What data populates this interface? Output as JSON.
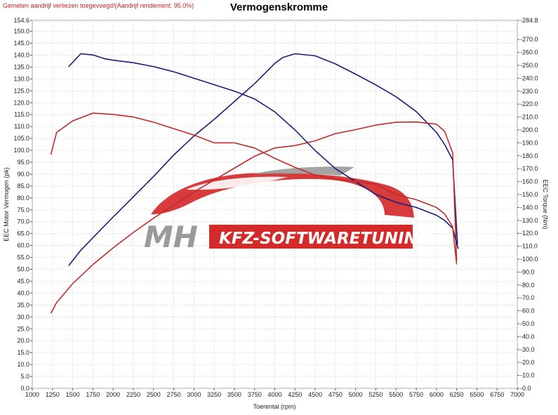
{
  "header": {
    "note": "Gemeten aandrijf verliezen toegevoegd!(Aandrijf rendement: 95.0%)",
    "title": "Vermogenskromme"
  },
  "watermark": {
    "left_text": "MH",
    "right_text": "KFZ-SOFTWARETUNING",
    "accent_color": "#d42a2a",
    "grey_color": "#9a9a9a"
  },
  "chart_data": {
    "type": "line",
    "title": "Vermogenskromme",
    "xlabel": "Toerental (rpm)",
    "ylabel_left": "EEC Motor Vermogen (pk)",
    "ylabel_right": "EEC Torque (Nm)",
    "xlim": [
      1000,
      7000
    ],
    "ylim_left": [
      0,
      154.6
    ],
    "ylim_right": [
      0,
      284.8
    ],
    "grid": true,
    "x_ticks": [
      1000,
      1250,
      1500,
      1750,
      2000,
      2250,
      2500,
      2750,
      3000,
      3250,
      3500,
      3750,
      4000,
      4250,
      4500,
      4750,
      5000,
      5250,
      5500,
      5750,
      6000,
      6250,
      6500,
      6750,
      7000
    ],
    "y_left_ticks": [
      "0.0",
      "5.0",
      "10.0",
      "15.0",
      "20.0",
      "25.0",
      "30.0",
      "35.0",
      "40.0",
      "45.0",
      "50.0",
      "55.0",
      "60.0",
      "65.0",
      "70.0",
      "75.0",
      "80.0",
      "85.0",
      "90.0",
      "95.0",
      "100.0",
      "105.0",
      "110.0",
      "115.0",
      "120.0",
      "125.0",
      "130.0",
      "135.0",
      "140.0",
      "145.0",
      "150.0",
      "154.6"
    ],
    "y_right_ticks": [
      "0.0",
      "10.0",
      "20.0",
      "30.0",
      "40.0",
      "50.0",
      "60.0",
      "70.0",
      "80.0",
      "90.0",
      "100.0",
      "110.0",
      "120.0",
      "130.0",
      "140.0",
      "150.0",
      "160.0",
      "170.0",
      "180.0",
      "190.0",
      "200.0",
      "210.0",
      "220.0",
      "230.0",
      "240.0",
      "250.0",
      "260.0",
      "270.0",
      "284.8"
    ],
    "series": [
      {
        "axis": "left",
        "color": "#1c1c7a",
        "x": [
          1450,
          1600,
          1800,
          2000,
          2250,
          2500,
          2750,
          3000,
          3250,
          3500,
          3750,
          4000,
          4100,
          4250,
          4500,
          4750,
          5000,
          5250,
          5500,
          5750,
          6000,
          6100,
          6200,
          6260
        ],
        "y": [
          51.5,
          58,
          65,
          72,
          80.5,
          89,
          98,
          106,
          113,
          120.5,
          128,
          136.5,
          139,
          140.6,
          139.7,
          136.3,
          132,
          127.5,
          122.5,
          116.3,
          107.5,
          102.5,
          96,
          60.5
        ]
      },
      {
        "axis": "left",
        "color": "#c42a2a",
        "x": [
          1230,
          1300,
          1500,
          1750,
          2000,
          2250,
          2500,
          2750,
          3000,
          3250,
          3500,
          3750,
          4000,
          4250,
          4500,
          4750,
          5000,
          5250,
          5500,
          5750,
          6000,
          6100,
          6200,
          6250
        ],
        "y": [
          31.5,
          36,
          44,
          52,
          59,
          65.5,
          71.5,
          77,
          82.5,
          87.5,
          92.5,
          97.5,
          101,
          102,
          104,
          107,
          108.7,
          110.6,
          111.8,
          111.9,
          111,
          108,
          99,
          53.5
        ]
      },
      {
        "axis": "right",
        "color": "#1c1c7a",
        "x": [
          1450,
          1600,
          1750,
          1900,
          2000,
          2250,
          2500,
          2750,
          3000,
          3250,
          3500,
          3750,
          4000,
          4250,
          4500,
          4750,
          5000,
          5250,
          5500,
          5750,
          6000,
          6100,
          6200,
          6270
        ],
        "y": [
          249,
          259,
          258,
          255,
          254,
          252,
          249,
          245,
          240,
          235,
          230,
          224,
          214,
          200,
          184,
          170,
          160,
          150,
          144,
          140,
          134,
          130,
          124,
          108
        ]
      },
      {
        "axis": "right",
        "color": "#c42a2a",
        "x": [
          1230,
          1300,
          1500,
          1750,
          2000,
          2250,
          2500,
          2750,
          3000,
          3250,
          3500,
          3750,
          4000,
          4250,
          4500,
          4750,
          5000,
          5250,
          5500,
          5750,
          6000,
          6100,
          6200,
          6250
        ],
        "y": [
          181,
          198,
          207,
          213,
          212,
          210,
          206,
          201,
          196,
          190,
          190,
          186,
          178,
          171,
          165,
          162,
          160,
          158,
          150,
          146,
          140,
          135,
          125,
          96
        ]
      }
    ]
  }
}
